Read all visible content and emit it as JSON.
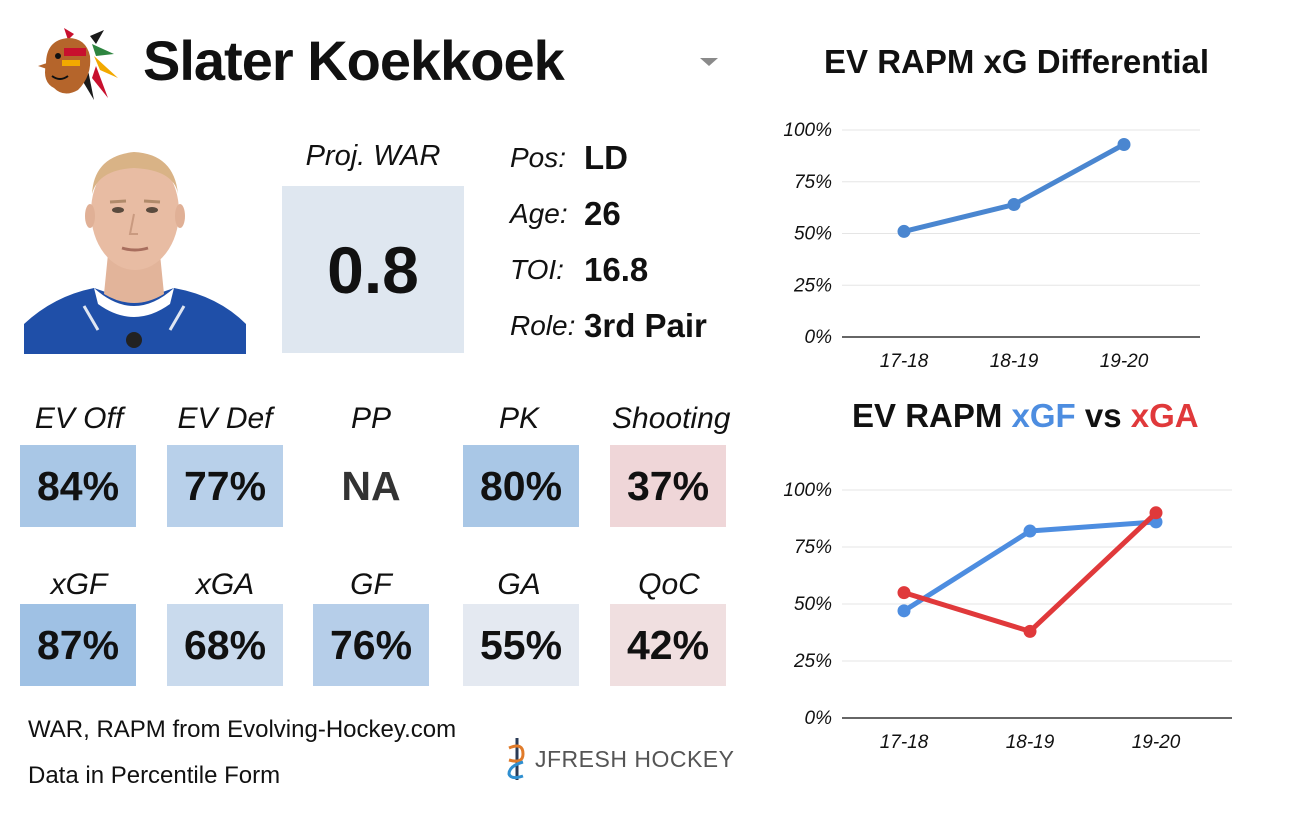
{
  "header": {
    "player_name": "Slater Koekkoek"
  },
  "war": {
    "label": "Proj. WAR",
    "value": "0.8"
  },
  "bio": [
    {
      "label": "Pos:",
      "value": "LD"
    },
    {
      "label": "Age:",
      "value": "26"
    },
    {
      "label": "TOI:",
      "value": "16.8"
    },
    {
      "label": "Role:",
      "value": "3rd Pair"
    }
  ],
  "stats_row1": [
    {
      "label": "EV Off",
      "value": "84%",
      "color": "#a9c7e6"
    },
    {
      "label": "EV Def",
      "value": "77%",
      "color": "#b8d0ea"
    },
    {
      "label": "PP",
      "value": "NA",
      "color": "#ffffff"
    },
    {
      "label": "PK",
      "value": "80%",
      "color": "#a9c7e6"
    },
    {
      "label": "Shooting",
      "value": "37%",
      "color": "#efd6d8"
    }
  ],
  "stats_row2": [
    {
      "label": "xGF",
      "value": "87%",
      "color": "#9fc1e4"
    },
    {
      "label": "xGA",
      "value": "68%",
      "color": "#c9daed"
    },
    {
      "label": "GF",
      "value": "76%",
      "color": "#b6cee9"
    },
    {
      "label": "GA",
      "value": "55%",
      "color": "#e4e9f1"
    },
    {
      "label": "QoC",
      "value": "42%",
      "color": "#f0dfe0"
    }
  ],
  "footer": {
    "source": "WAR, RAPM from  Evolving-Hockey.com",
    "note": "Data in Percentile Form",
    "brand": "JFRESH HOCKEY"
  },
  "colors": {
    "line_blue": "#4a86d0",
    "xgf_blue": "#4d8de0",
    "xga_red": "#e0393b",
    "grid": "#e5e5e5"
  },
  "chart_data": [
    {
      "type": "line",
      "title": "EV RAPM xG Differential",
      "categories": [
        "17-18",
        "18-19",
        "19-20"
      ],
      "series": [
        {
          "values": [
            51,
            64,
            93
          ],
          "color": "#4a86d0"
        }
      ],
      "yticks": [
        "100%",
        "75%",
        "50%",
        "25%",
        "0%"
      ],
      "ylim": [
        0,
        100
      ],
      "grid": true
    },
    {
      "type": "line",
      "title_parts": [
        "EV RAPM ",
        "xGF",
        " vs ",
        "xGA"
      ],
      "categories": [
        "17-18",
        "18-19",
        "19-20"
      ],
      "series": [
        {
          "name": "xGF",
          "values": [
            47,
            82,
            86
          ],
          "color": "#4d8de0"
        },
        {
          "name": "xGA",
          "values": [
            55,
            38,
            90
          ],
          "color": "#e0393b"
        }
      ],
      "yticks": [
        "100%",
        "75%",
        "50%",
        "25%",
        "0%"
      ],
      "ylim": [
        0,
        100
      ],
      "grid": true
    }
  ]
}
